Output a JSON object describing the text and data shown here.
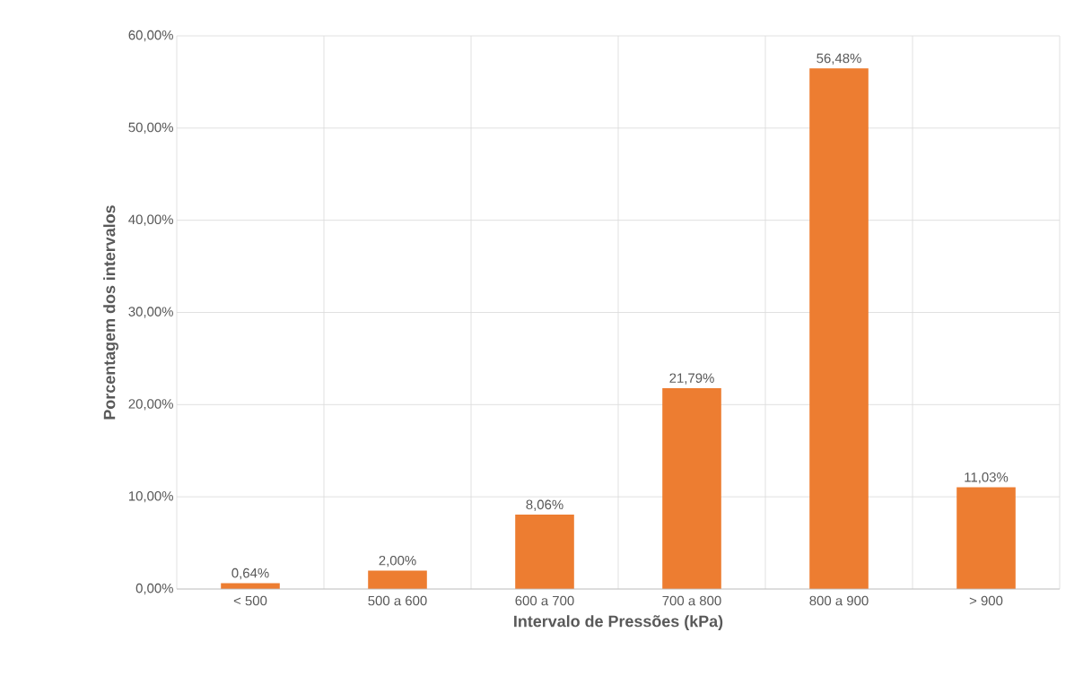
{
  "chart_data": {
    "type": "bar",
    "xlabel": "Intervalo de Pressões (kPa)",
    "ylabel": "Porcentagem dos intervalos",
    "categories": [
      "< 500",
      "500 a 600",
      "600 a 700",
      "700 a 800",
      "800 a 900",
      "> 900"
    ],
    "values": [
      0.64,
      2.0,
      8.06,
      21.79,
      56.48,
      11.03
    ],
    "value_labels": [
      "0,64%",
      "2,00%",
      "8,06%",
      "21,79%",
      "56,48%",
      "11,03%"
    ],
    "color": "#ed7d31",
    "ylim": [
      0,
      60
    ],
    "yticks": [
      {
        "value": 0,
        "label": "0,00%"
      },
      {
        "value": 10,
        "label": "10,00%"
      },
      {
        "value": 20,
        "label": "20,00%"
      },
      {
        "value": 30,
        "label": "30,00%"
      },
      {
        "value": 40,
        "label": "40,00%"
      },
      {
        "value": 50,
        "label": "50,00%"
      },
      {
        "value": 60,
        "label": "60,00%"
      }
    ],
    "grid": true
  }
}
